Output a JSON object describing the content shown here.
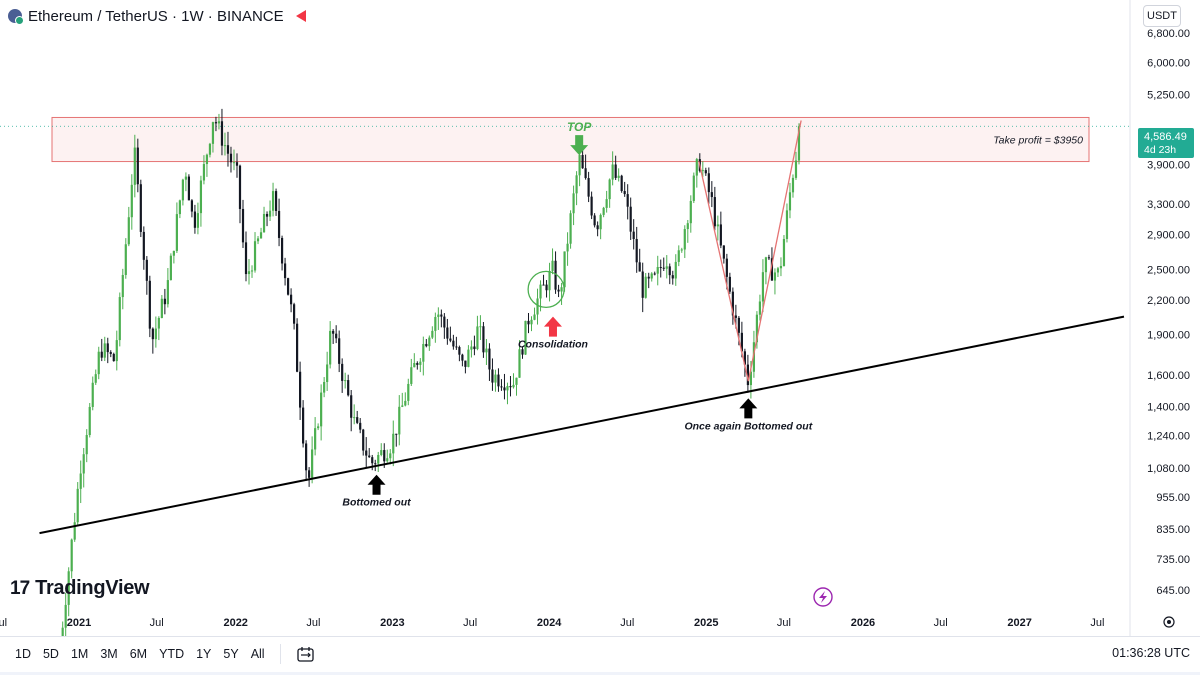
{
  "header": {
    "symbol_title": "Ethereum / TetherUS · 1W · BINANCE",
    "currency": "USDT"
  },
  "price_badge": {
    "price": "4,586.49",
    "countdown": "4d 23h"
  },
  "annotations": {
    "take_profit": "Take profit = $3950",
    "top": "TOP",
    "consolidation": "Consolidation",
    "bottomed_out": "Bottomed out",
    "once_again": "Once again Bottomed out"
  },
  "branding": {
    "logo_mark": "17",
    "logo_text": "TradingView"
  },
  "bottom_bar": {
    "ranges": [
      "1D",
      "5D",
      "1M",
      "3M",
      "6M",
      "YTD",
      "1Y",
      "5Y",
      "All"
    ],
    "clock": "01:36:28 UTC"
  },
  "colors": {
    "up": "#4caf50",
    "down": "#131722",
    "zone_border": "#e57373",
    "zone_fill": "#fdf2f2",
    "accent_green": "#22ab94",
    "arrow_red": "#f23645"
  },
  "chart_data": {
    "type": "candlestick",
    "title": "Ethereum / TetherUS · 1W · BINANCE",
    "y_scale": "log",
    "ylim": [
      600,
      7500
    ],
    "y_ticks": [
      "6,800.00",
      "6,000.00",
      "5,250.00",
      "3,900.00",
      "3,300.00",
      "2,900.00",
      "2,500.00",
      "2,200.00",
      "1,900.00",
      "1,600.00",
      "1,400.00",
      "1,240.00",
      "1,080.00",
      "955.00",
      "835.00",
      "735.00",
      "645.00"
    ],
    "x_ticks": [
      "Jul",
      "2021",
      "Jul",
      "2022",
      "Jul",
      "2023",
      "Jul",
      "2024",
      "Jul",
      "2025",
      "Jul",
      "2026",
      "Jul",
      "2027",
      "Jul"
    ],
    "x_range": [
      "2020-07-01",
      "2027-09-15"
    ],
    "last_price": 4586.49,
    "zone": {
      "low": 3950,
      "high": 4760,
      "label": "Take profit = $3950"
    },
    "trendline": {
      "from": [
        "2020-10-01",
        820
      ],
      "to": [
        "2027-09-01",
        2050
      ]
    },
    "path": [
      [
        "2020-11-10",
        450
      ],
      [
        "2021-01-05",
        1100
      ],
      [
        "2021-02-20",
        1800
      ],
      [
        "2021-03-25",
        1700
      ],
      [
        "2021-05-10",
        4100
      ],
      [
        "2021-06-20",
        1850
      ],
      [
        "2021-07-25",
        2300
      ],
      [
        "2021-09-05",
        3900
      ],
      [
        "2021-09-25",
        3000
      ],
      [
        "2021-11-10",
        4800
      ],
      [
        "2022-01-05",
        3700
      ],
      [
        "2022-01-25",
        2400
      ],
      [
        "2022-03-28",
        3400
      ],
      [
        "2022-05-15",
        2000
      ],
      [
        "2022-06-18",
        1000
      ],
      [
        "2022-08-12",
        1950
      ],
      [
        "2022-10-05",
        1300
      ],
      [
        "2022-11-12",
        1100
      ],
      [
        "2022-12-30",
        1200
      ],
      [
        "2023-02-20",
        1650
      ],
      [
        "2023-04-15",
        2100
      ],
      [
        "2023-06-15",
        1650
      ],
      [
        "2023-07-20",
        1950
      ],
      [
        "2023-08-20",
        1600
      ],
      [
        "2023-10-10",
        1550
      ],
      [
        "2023-11-15",
        2050
      ],
      [
        "2024-01-10",
        2500
      ],
      [
        "2024-01-24",
        2200
      ],
      [
        "2024-03-11",
        4000
      ],
      [
        "2024-04-20",
        3000
      ],
      [
        "2024-05-27",
        3800
      ],
      [
        "2024-06-25",
        3400
      ],
      [
        "2024-08-05",
        2300
      ],
      [
        "2024-09-05",
        2400
      ],
      [
        "2024-09-28",
        2650
      ],
      [
        "2024-10-20",
        2450
      ],
      [
        "2024-12-15",
        4000
      ],
      [
        "2025-01-15",
        3300
      ],
      [
        "2025-02-05",
        2700
      ],
      [
        "2025-04-09",
        1550
      ],
      [
        "2025-05-15",
        2550
      ],
      [
        "2025-06-20",
        2450
      ],
      [
        "2025-07-20",
        3700
      ],
      [
        "2025-08-10",
        4586
      ]
    ],
    "consolidation_circle": {
      "date": "2023-12-25",
      "price": 2300
    },
    "markers": [
      {
        "kind": "top",
        "date": "2024-03-11",
        "price": 4060
      },
      {
        "kind": "consolidation",
        "date": "2024-01-10",
        "price": 2050
      },
      {
        "kind": "bottom",
        "date": "2022-11-25",
        "price": 1050
      },
      {
        "kind": "bottom-again",
        "date": "2025-04-09",
        "price": 1450
      }
    ]
  }
}
